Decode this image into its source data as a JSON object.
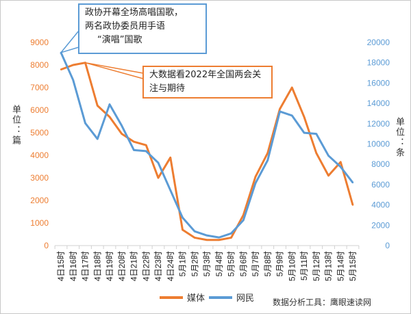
{
  "chart_data": {
    "type": "line",
    "title": "",
    "x": [
      "4日15时",
      "4日16时",
      "4日17时",
      "4日18时",
      "4日19时",
      "4日20时",
      "4日21时",
      "4日22时",
      "4日23时",
      "4日24时",
      "5月1时",
      "5月2时",
      "5月3时",
      "5月4时",
      "5月5时",
      "5月6时",
      "5月7时",
      "5月8时",
      "5月9时",
      "5月10时",
      "5月11时",
      "5月12时",
      "5月13时",
      "5月14时",
      "5月15时"
    ],
    "series": [
      {
        "name": "媒体",
        "axis": "left",
        "color": "#ED7D31",
        "values": [
          7800,
          8000,
          8100,
          6200,
          5700,
          4950,
          4600,
          4450,
          3000,
          3900,
          700,
          350,
          250,
          250,
          350,
          1350,
          3050,
          4100,
          6050,
          7000,
          5700,
          4100,
          3100,
          3700,
          1800
        ]
      },
      {
        "name": "网民",
        "axis": "right",
        "color": "#5B9BD5",
        "values": [
          19000,
          16300,
          12050,
          10500,
          13900,
          11800,
          9400,
          9300,
          8150,
          5450,
          2750,
          1400,
          1000,
          800,
          1200,
          2500,
          6150,
          8400,
          13200,
          12800,
          11100,
          11000,
          8850,
          7750,
          6200
        ]
      }
    ],
    "y_left": {
      "label": "单位：篇",
      "ylim": [
        0,
        9000
      ],
      "ticks": [
        "0",
        "1000",
        "2000",
        "3000",
        "4000",
        "5000",
        "6000",
        "7000",
        "8000",
        "9000"
      ]
    },
    "y_right": {
      "label": "单位：条",
      "ylim": [
        0,
        20000
      ],
      "ticks": [
        "0",
        "2000",
        "4000",
        "6000",
        "8000",
        "10000",
        "12000",
        "14000",
        "16000",
        "18000",
        "20000"
      ]
    },
    "legend_position": "bottom",
    "annotations": [
      {
        "text_lines": [
          "政协开幕全场高唱国歌，",
          "两名政协委员用手语",
          "“演唱”国歌"
        ],
        "series": "网民",
        "index": 0,
        "color": "#5B9BD5"
      },
      {
        "text_lines": [
          "大数据看2022年全国两会关",
          "注与期待"
        ],
        "series": "媒体",
        "index": 2,
        "color": "#ED7D31"
      }
    ]
  },
  "source": "数据分析工具：鹰眼速读网"
}
